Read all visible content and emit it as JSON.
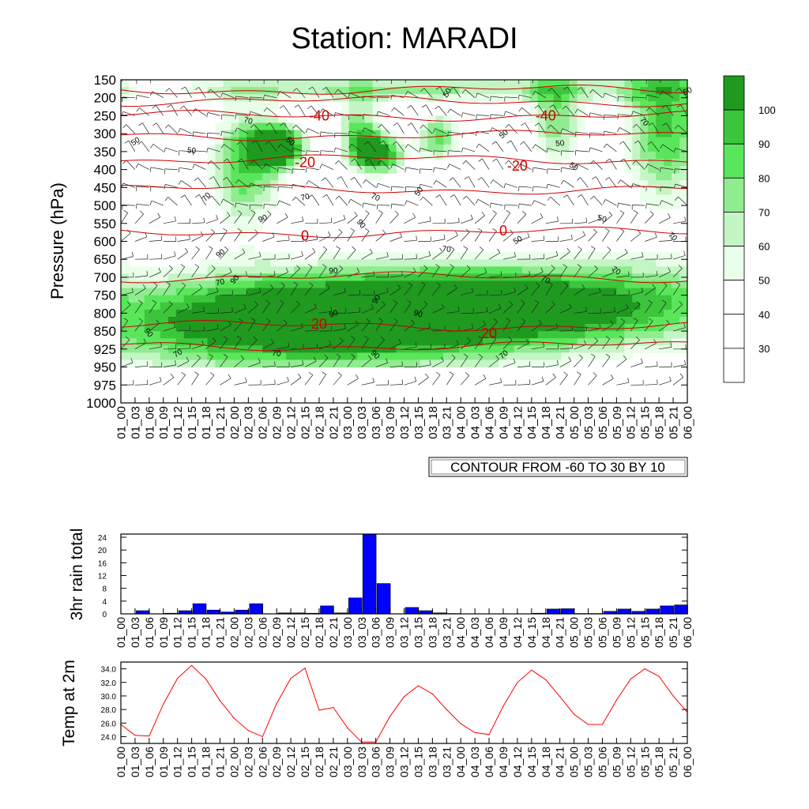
{
  "title": "Station: MARADI",
  "colors": {
    "contour_line": "#cc0000",
    "rain_bar": "#0000ff",
    "temp_line": "#ff0000",
    "fill_levels": [
      "#ffffff",
      "#ffffff",
      "#ffffff",
      "#ffffff",
      "#eaffea",
      "#c4f5c4",
      "#8fec8f",
      "#5ae65a",
      "#3cc63c",
      "#1f9a1f"
    ]
  },
  "chart_data": [
    {
      "type": "heatmap",
      "ylabel": "Pressure (hPa)",
      "y_ticks": [
        "150",
        "200",
        "250",
        "300",
        "350",
        "400",
        "450",
        "500",
        "550",
        "600",
        "650",
        "700",
        "750",
        "800",
        "850",
        "925",
        "950",
        "975",
        "1000"
      ],
      "x_ticks": [
        "01_00",
        "01_03",
        "01_06",
        "01_09",
        "01_12",
        "01_15",
        "01_18",
        "01_21",
        "02_00",
        "02_03",
        "02_06",
        "02_09",
        "02_12",
        "02_15",
        "02_18",
        "02_21",
        "03_00",
        "03_03",
        "03_06",
        "03_09",
        "03_12",
        "03_15",
        "03_18",
        "03_21",
        "04_00",
        "04_03",
        "04_06",
        "04_09",
        "04_12",
        "04_15",
        "04_18",
        "04_21",
        "05_00",
        "05_03",
        "05_06",
        "05_09",
        "05_12",
        "05_15",
        "05_18",
        "05_21",
        "06_00"
      ],
      "colorbar_labels": [
        "30",
        "40",
        "50",
        "60",
        "70",
        "80",
        "90",
        "100"
      ],
      "contour_info": "CONTOUR FROM -60 TO 30 BY 10",
      "temp_contour_labels": [
        {
          "text": "-40",
          "x": "02_18",
          "y": 250
        },
        {
          "text": "-40",
          "x": "04_18",
          "y": 250
        },
        {
          "text": "-20",
          "x": "02_15",
          "y": 380
        },
        {
          "text": "-20",
          "x": "04_12",
          "y": 390
        },
        {
          "text": "0",
          "x": "02_15",
          "y": 585
        },
        {
          "text": "0",
          "x": "04_09",
          "y": 570
        },
        {
          "text": "20",
          "x": "02_18",
          "y": 830
        },
        {
          "text": "20",
          "x": "04_06",
          "y": 860
        }
      ],
      "humidity_labels": [
        {
          "text": "50",
          "x": "03_21",
          "y": 185
        },
        {
          "text": "50",
          "x": "06_00",
          "y": 180
        },
        {
          "text": "70",
          "x": "02_03",
          "y": 262
        },
        {
          "text": "70",
          "x": "05_15",
          "y": 265
        },
        {
          "text": "50",
          "x": "01_03",
          "y": 320
        },
        {
          "text": "50",
          "x": "01_15",
          "y": 345
        },
        {
          "text": "50",
          "x": "02_12",
          "y": 320
        },
        {
          "text": "50",
          "x": "04_09",
          "y": 300
        },
        {
          "text": "50",
          "x": "04_21",
          "y": 325
        },
        {
          "text": "50",
          "x": "05_00",
          "y": 390
        },
        {
          "text": "70",
          "x": "01_18",
          "y": 475
        },
        {
          "text": "70",
          "x": "02_15",
          "y": 475
        },
        {
          "text": "70",
          "x": "03_06",
          "y": 475
        },
        {
          "text": "50",
          "x": "03_15",
          "y": 460
        },
        {
          "text": "90",
          "x": "02_06",
          "y": 535
        },
        {
          "text": "50",
          "x": "05_06",
          "y": 535
        },
        {
          "text": "90",
          "x": "03_03",
          "y": 550
        },
        {
          "text": "50",
          "x": "04_12",
          "y": 595
        },
        {
          "text": "70",
          "x": "03_21",
          "y": 620
        },
        {
          "text": "70",
          "x": "05_21",
          "y": 585
        },
        {
          "text": "90",
          "x": "01_21",
          "y": 632
        },
        {
          "text": "90",
          "x": "02_21",
          "y": 680
        },
        {
          "text": "70",
          "x": "05_09",
          "y": 680
        },
        {
          "text": "90",
          "x": "02_00",
          "y": 705
        },
        {
          "text": "70",
          "x": "01_21",
          "y": 712
        },
        {
          "text": "70",
          "x": "04_18",
          "y": 705
        },
        {
          "text": "90",
          "x": "03_06",
          "y": 760
        },
        {
          "text": "90",
          "x": "02_21",
          "y": 800
        },
        {
          "text": "90",
          "x": "03_15",
          "y": 800
        },
        {
          "text": "90",
          "x": "01_06",
          "y": 855
        },
        {
          "text": "70",
          "x": "01_12",
          "y": 930
        },
        {
          "text": "70",
          "x": "02_09",
          "y": 930
        },
        {
          "text": "90",
          "x": "03_06",
          "y": 932
        },
        {
          "text": "70",
          "x": "04_09",
          "y": 932
        }
      ]
    },
    {
      "type": "bar",
      "ylabel": "3hr rain total",
      "y_ticks": [
        "0",
        "4",
        "8",
        "12",
        "16",
        "20",
        "24"
      ],
      "ylim": [
        0,
        25
      ],
      "x_ticks": [
        "01_00",
        "01_03",
        "01_06",
        "01_09",
        "01_12",
        "01_15",
        "01_18",
        "01_21",
        "02_00",
        "02_03",
        "02_06",
        "02_09",
        "02_12",
        "02_15",
        "02_18",
        "02_21",
        "03_00",
        "03_03",
        "03_06",
        "03_09",
        "03_12",
        "03_15",
        "03_18",
        "03_21",
        "04_00",
        "04_03",
        "04_06",
        "04_09",
        "04_12",
        "04_15",
        "04_18",
        "04_21",
        "05_00",
        "05_03",
        "05_06",
        "05_09",
        "05_12",
        "05_15",
        "05_18",
        "05_21",
        "06_00"
      ],
      "categories": [
        "01_00",
        "01_03",
        "01_06",
        "01_09",
        "01_12",
        "01_15",
        "01_18",
        "01_21",
        "02_00",
        "02_03",
        "02_06",
        "02_09",
        "02_12",
        "02_15",
        "02_18",
        "02_21",
        "03_00",
        "03_03",
        "03_06",
        "03_09",
        "03_12",
        "03_15",
        "03_18",
        "03_21",
        "04_00",
        "04_03",
        "04_06",
        "04_09",
        "04_12",
        "04_15",
        "04_18",
        "04_21",
        "05_00",
        "05_03",
        "05_06",
        "05_09",
        "05_12",
        "05_15",
        "05_18",
        "05_21"
      ],
      "values": [
        0,
        1.0,
        0,
        0.2,
        1.0,
        3.2,
        1.2,
        0.6,
        1.2,
        3.2,
        0,
        0.3,
        0.3,
        0.2,
        2.5,
        0.3,
        5.0,
        25.0,
        9.5,
        0,
        2.0,
        1.0,
        0.3,
        0.1,
        0,
        0,
        0,
        0,
        0,
        0.2,
        1.5,
        1.6,
        0.1,
        0.1,
        0.8,
        1.5,
        0.8,
        1.5,
        2.5,
        2.8
      ]
    },
    {
      "type": "line",
      "ylabel": "Temp at 2m",
      "y_ticks": [
        "24.0",
        "26.0",
        "28.0",
        "30.0",
        "32.0",
        "34.0"
      ],
      "ylim": [
        23.0,
        35.0
      ],
      "x_ticks": [
        "01_00",
        "01_03",
        "01_06",
        "01_09",
        "01_12",
        "01_15",
        "01_18",
        "01_21",
        "02_00",
        "02_03",
        "02_06",
        "02_09",
        "02_12",
        "02_15",
        "02_18",
        "02_21",
        "03_00",
        "03_03",
        "03_06",
        "03_09",
        "03_12",
        "03_15",
        "03_18",
        "03_21",
        "04_00",
        "04_03",
        "04_06",
        "04_09",
        "04_12",
        "04_15",
        "04_18",
        "04_21",
        "05_00",
        "05_03",
        "05_06",
        "05_09",
        "05_12",
        "05_15",
        "05_18",
        "05_21",
        "06_00"
      ],
      "x": [
        "01_00",
        "01_03",
        "01_06",
        "01_09",
        "01_12",
        "01_15",
        "01_18",
        "01_21",
        "02_00",
        "02_03",
        "02_06",
        "02_09",
        "02_12",
        "02_15",
        "02_18",
        "02_21",
        "03_00",
        "03_03",
        "03_06",
        "03_09",
        "03_12",
        "03_15",
        "03_18",
        "03_21",
        "04_00",
        "04_03",
        "04_06",
        "04_09",
        "04_12",
        "04_15",
        "04_18",
        "04_21",
        "05_00",
        "05_03",
        "05_06",
        "05_09",
        "05_12",
        "05_15",
        "05_18",
        "05_21",
        "06_00"
      ],
      "values": [
        25.8,
        24.2,
        24.1,
        28.8,
        32.6,
        34.5,
        32.5,
        29.3,
        26.7,
        24.9,
        24.0,
        28.9,
        32.6,
        34.1,
        27.9,
        28.3,
        25.3,
        23.2,
        23.2,
        27.0,
        29.9,
        31.5,
        30.3,
        28.0,
        25.9,
        24.6,
        24.3,
        28.5,
        32.0,
        33.8,
        32.4,
        29.9,
        27.3,
        25.8,
        25.8,
        29.4,
        32.5,
        34.0,
        32.9,
        30.0,
        27.6
      ]
    }
  ]
}
